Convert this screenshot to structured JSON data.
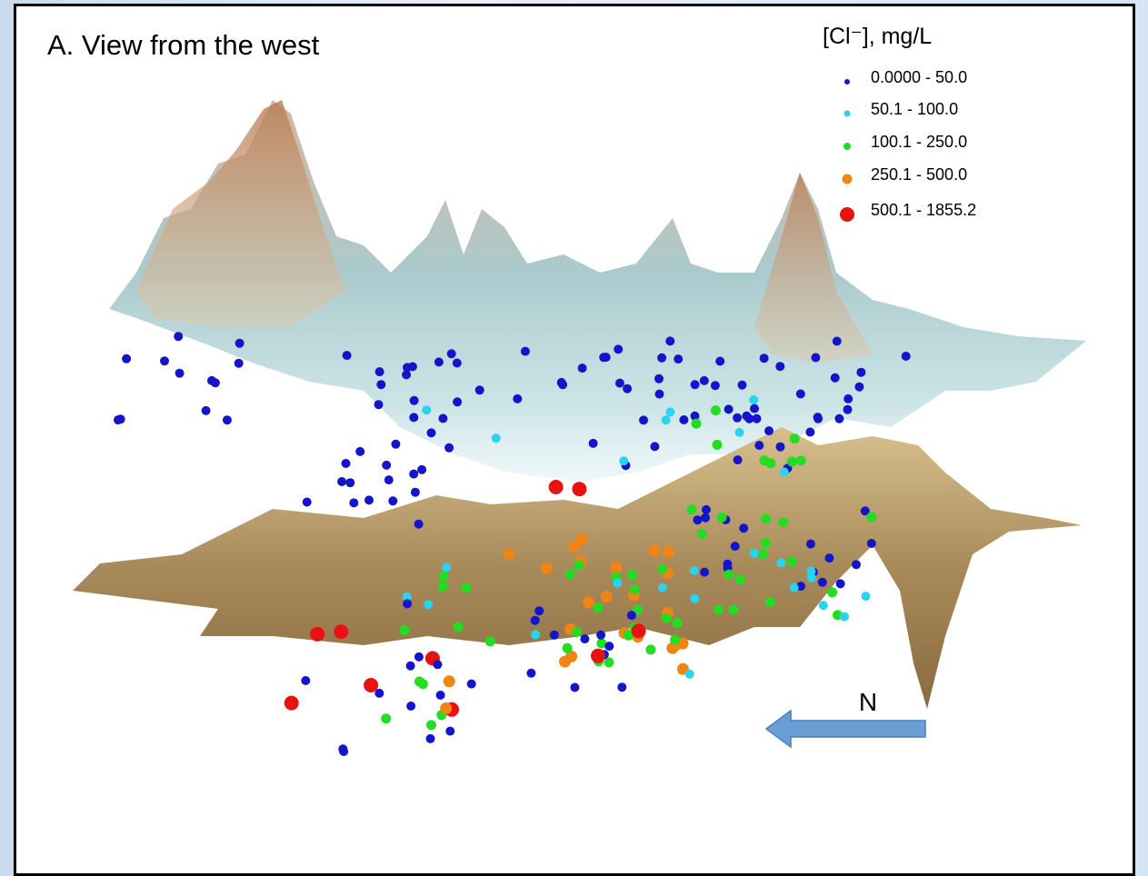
{
  "title": "A. View from the west",
  "legend": {
    "title": "[Cl⁻], mg/L",
    "items": [
      {
        "label": "0.0000 - 50.0",
        "color": "#1414c8"
      },
      {
        "label": "50.1 - 100.0",
        "color": "#28d4f0"
      },
      {
        "label": "100.1 - 250.0",
        "color": "#22dd22"
      },
      {
        "label": "250.1 - 500.0",
        "color": "#f08414"
      },
      {
        "label": "500.1 - 1855.2",
        "color": "#e81212"
      }
    ]
  },
  "north_label": "N"
}
